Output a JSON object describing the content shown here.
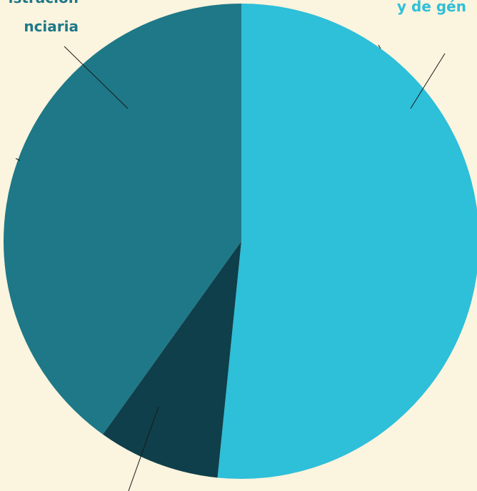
{
  "chart_data": {
    "type": "pie",
    "categories": [
      [
        "y de gén"
      ],
      null,
      [
        "istración",
        "nciaria"
      ]
    ],
    "values": [
      51.6,
      8.3,
      40.1
    ],
    "colors": [
      "#2ebfd9",
      "#0f3f4a",
      "#1e7888"
    ],
    "label_colors": [
      "#2ebfd9",
      null,
      "#1e7888"
    ]
  }
}
